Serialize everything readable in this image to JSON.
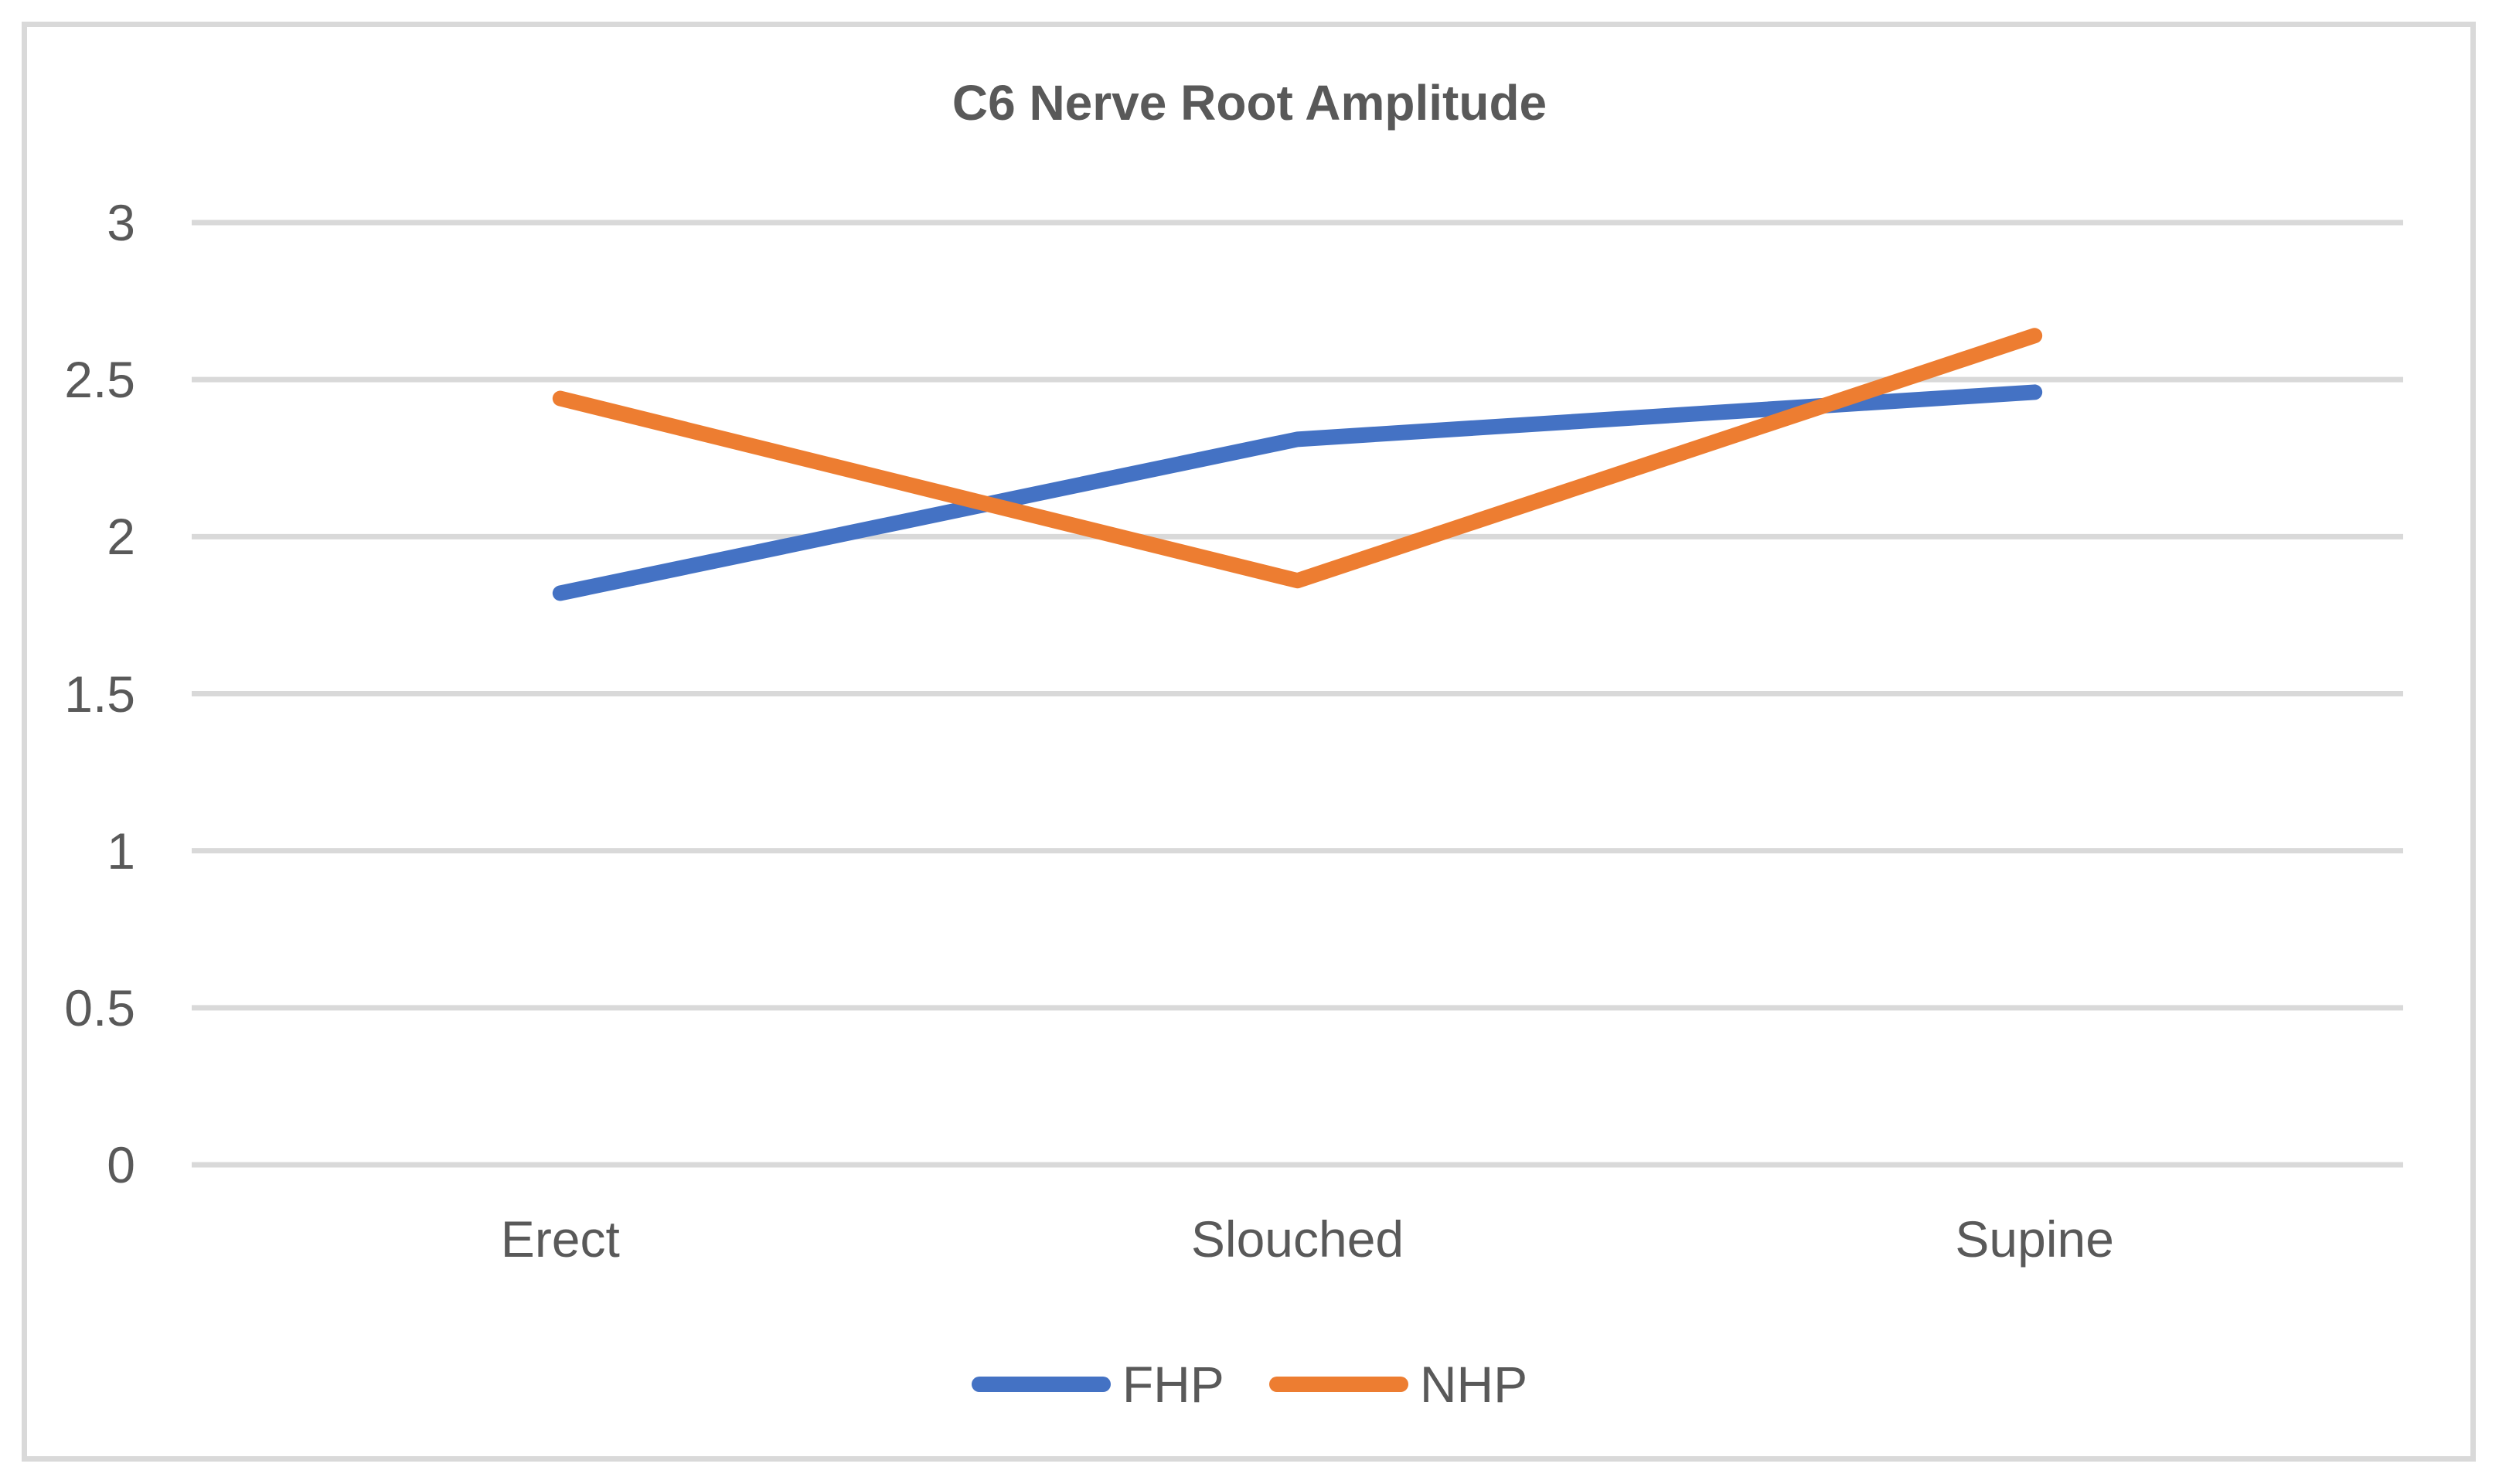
{
  "chart_data": {
    "type": "line",
    "title": "C6 Nerve Root Amplitude",
    "categories": [
      "Erect",
      "Slouched",
      "Supine"
    ],
    "series": [
      {
        "name": "FHP",
        "color": "#4472C4",
        "values": [
          1.82,
          2.31,
          2.46
        ]
      },
      {
        "name": "NHP",
        "color": "#ED7D31",
        "values": [
          2.44,
          1.86,
          2.64
        ]
      }
    ],
    "xlabel": "",
    "ylabel": "",
    "ylim": [
      0,
      3
    ],
    "ytick_step": 0.5,
    "yticks": [
      "0",
      "0.5",
      "1",
      "1.5",
      "2",
      "2.5",
      "3"
    ],
    "grid": true,
    "legend_position": "bottom",
    "colors": {
      "text": "#595959",
      "gridline": "#D9D9D9",
      "frame_border": "#D9D9D9",
      "background": "#FFFFFF"
    }
  }
}
